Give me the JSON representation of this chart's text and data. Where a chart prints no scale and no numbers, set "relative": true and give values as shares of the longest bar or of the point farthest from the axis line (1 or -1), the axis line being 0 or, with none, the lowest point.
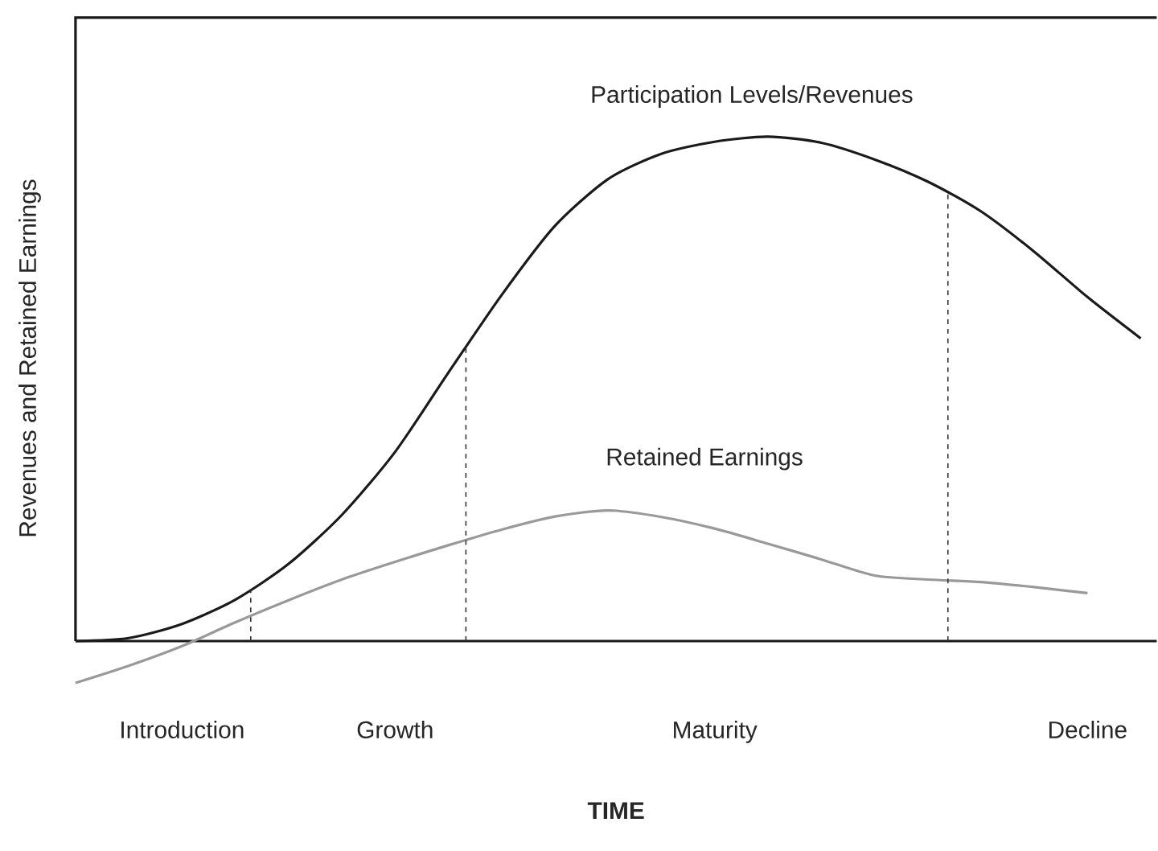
{
  "chart_data": {
    "type": "line",
    "relative": true,
    "xlabel": "TIME",
    "ylabel": "Revenues and Retained Earnings",
    "categories": [
      null,
      null,
      "Introduction",
      null,
      null,
      null,
      "Growth",
      null,
      null,
      null,
      null,
      null,
      "Maturity",
      null,
      null,
      null,
      null,
      null,
      null,
      "Decline",
      null
    ],
    "tick_labels": "x",
    "marker": "none",
    "line_style": "solid",
    "series": [
      {
        "name": "Participation Levels/Revenues",
        "color": "#1a1a1a",
        "values": [
          0,
          0.006,
          0.034,
          0.082,
          0.153,
          0.25,
          0.375,
          0.532,
          0.686,
          0.823,
          0.916,
          0.966,
          0.99,
          1.0,
          0.988,
          0.955,
          0.911,
          0.852,
          0.772,
          0.682,
          0.6
        ]
      },
      {
        "name": "Retained Earnings",
        "color": "#999999",
        "values": [
          -0.083,
          -0.049,
          -0.01,
          0.037,
          0.081,
          0.122,
          0.157,
          0.19,
          0.221,
          0.247,
          0.259,
          0.246,
          0.223,
          0.193,
          0.162,
          0.13,
          0.122,
          0.117,
          0.107,
          0.095,
          null
        ]
      }
    ]
  }
}
